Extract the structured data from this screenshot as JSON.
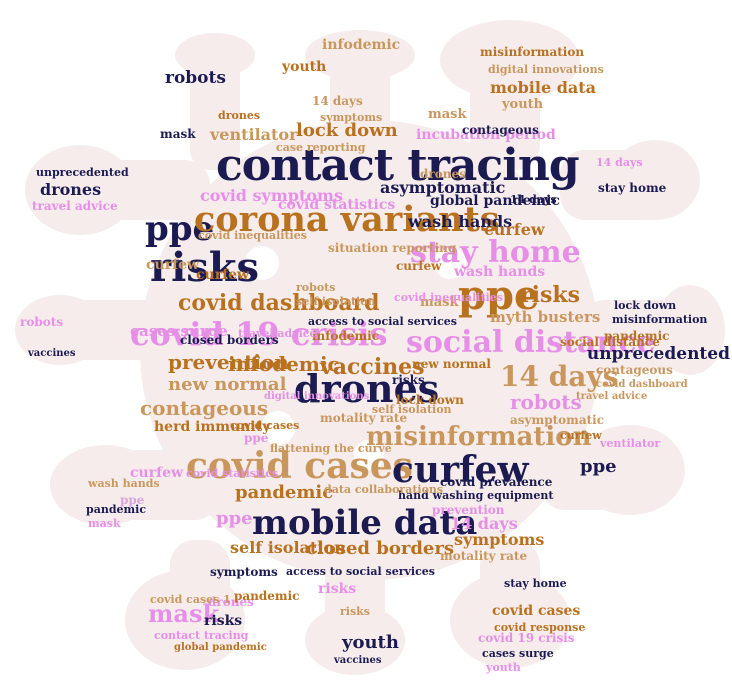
{
  "background_color": "#ffffff",
  "shape_fill": "#f6ecec",
  "palette": {
    "navy": "#1b1b52",
    "bronze": "#b8711f",
    "tan": "#c9975c",
    "pink": "#e68fe6",
    "lavender": "#d9a3de"
  },
  "words": {
    "contact_tracing": "contact tracing",
    "corona_variants": "corona variants",
    "ppe": "ppe",
    "risks": "risks",
    "covid_19_crisis": "covid 19 crisis",
    "covid_dashboard": "covid dashboard",
    "stay_home": "stay home",
    "social_distance": "social distance",
    "drones": "drones",
    "vaccines": "vaccines",
    "covid_cases": "covid cases",
    "mobile_data": "mobile data",
    "curfew": "curfew",
    "misinformation": "misinformation",
    "fourteen_days": "14 days",
    "prevention": "prevention",
    "new_normal": "new normal",
    "contageous": "contageous",
    "robots": "robots",
    "lock_down": "lock down",
    "ventilator": "ventilator",
    "covid_symptoms": "covid symptoms",
    "pandemic": "pandemic",
    "mask": "mask",
    "youth": "youth",
    "infodemic": "infodemic",
    "unprecedented": "unprecedented",
    "closed_borders": "closed borders",
    "self_isolation": "self isolation",
    "herd_immunity": "herd immunity",
    "symptoms": "symptoms",
    "cases_surge": "cases surge",
    "asymptomatic": "asymptomatic",
    "wash_hands": "wash hands",
    "global_pandemic": "global pandemic",
    "myth_busters": "myth busters",
    "travel_advice": "travel advice",
    "covid_statistics": "covid statistics",
    "incubation_period": "incubation period",
    "case_reporting": "case reporting",
    "situation_reporting": "situation reporting",
    "covid_inequalities": "covid inequalities",
    "motality_rate": "motality rate",
    "flattening_the_curve": "flattening the curve",
    "access_to_social_services": "access to social services",
    "hand_washing_equipment": "hand washing equipment",
    "covid_prevalence": "covid prevalence",
    "data_collaborations": "data collaborations",
    "digital_innovations": "digital innovations",
    "covid_response": "covid response",
    "covid_cases_1": "covid cases 1"
  }
}
